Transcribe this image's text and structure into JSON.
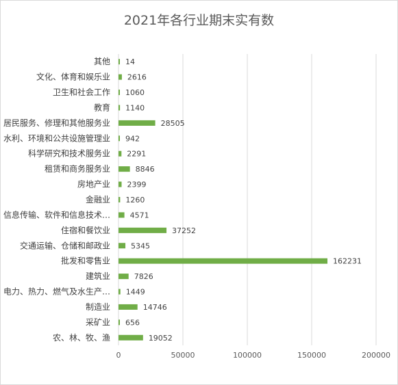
{
  "chart_data": {
    "type": "bar",
    "orientation": "horizontal",
    "title": "2021年各行业期末实有数",
    "categories": [
      "其他",
      "文化、体育和娱乐业",
      "卫生和社会工作",
      "教育",
      "居民服务、修理和其他服务业",
      "水利、环境和公共设施管理业",
      "科学研究和技术服务业",
      "租赁和商务服务业",
      "房地产业",
      "金融业",
      "信息传输、软件和信息技术…",
      "住宿和餐饮业",
      "交通运输、仓储和邮政业",
      "批发和零售业",
      "建筑业",
      "电力、热力、燃气及水生产…",
      "制造业",
      "采矿业",
      "农、林、牧、渔"
    ],
    "values": [
      14,
      2616,
      1060,
      1140,
      28505,
      942,
      2291,
      8846,
      2399,
      1260,
      4571,
      37252,
      5345,
      162231,
      7826,
      1449,
      14746,
      656,
      19052
    ],
    "value_labels": [
      "14",
      "2616",
      "1060",
      "1140",
      "28505",
      "942",
      "2291",
      "8846",
      "2399",
      "1260",
      "4571",
      "37252",
      "5345",
      "162231",
      "7826",
      "1449",
      "14746",
      "656",
      "19052"
    ],
    "xlim": [
      0,
      200000
    ],
    "xticks": [
      0,
      50000,
      100000,
      150000,
      200000
    ],
    "xtick_labels": [
      "0",
      "50000",
      "100000",
      "150000",
      "200000"
    ],
    "grid": "vertical",
    "legend": "none",
    "bar_color": "#70ad47",
    "grid_color": "#d9d9d9",
    "xlabel": "",
    "ylabel": ""
  }
}
